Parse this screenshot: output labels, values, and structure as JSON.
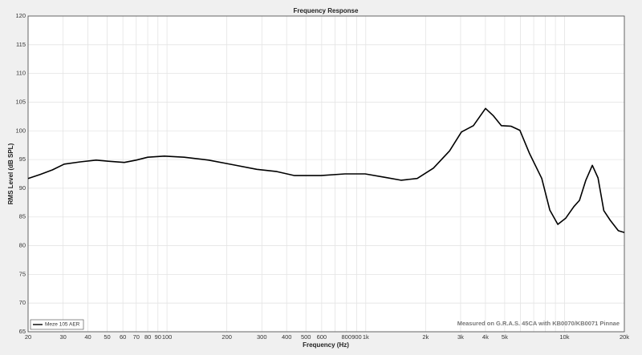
{
  "chart_data": {
    "type": "line",
    "title": "Frequency Response",
    "xlabel": "Frequency (Hz)",
    "ylabel": "RMS Level (dB SPL)",
    "annotation": "Measured on G.R.A.S. 45CA with KB0070/KB0071 Pinnae",
    "xscale": "log",
    "grid": true,
    "legend": "lower left",
    "xlim": [
      20,
      20000
    ],
    "ylim": [
      65,
      120
    ],
    "yticks": [
      65,
      70,
      75,
      80,
      85,
      90,
      95,
      100,
      105,
      110,
      115,
      120
    ],
    "xticks": [
      20,
      30,
      40,
      50,
      60,
      70,
      80,
      90,
      100,
      200,
      300,
      400,
      500,
      600,
      800,
      900,
      {
        "value": 1000,
        "label": "1k"
      },
      {
        "value": 2000,
        "label": "2k"
      },
      {
        "value": 3000,
        "label": "3k"
      },
      {
        "value": 4000,
        "label": "4k"
      },
      {
        "value": 5000,
        "label": "5k"
      },
      {
        "value": 10000,
        "label": "10k"
      },
      {
        "value": 20000,
        "label": "20k"
      }
    ],
    "xminorticks": [
      700,
      6000,
      7000,
      8000,
      9000
    ],
    "x": [
      20,
      23,
      26.5,
      30.4,
      36.6,
      44,
      50.6,
      61,
      70,
      80,
      97,
      122,
      162,
      214,
      283,
      357,
      438,
      594,
      786,
      993,
      1250,
      1505,
      1815,
      2190,
      2640,
      3030,
      3480,
      4005,
      4390,
      4810,
      5380,
      5960,
      6680,
      7680,
      8430,
      9250,
      10150,
      11140,
      11890,
      12800,
      13800,
      14750,
      15760,
      17000,
      18650,
      20000
    ],
    "series": [
      {
        "name": "Meze 105 AER",
        "color": "#000000",
        "values": [
          91.7,
          92.4,
          93.2,
          94.2,
          94.6,
          94.9,
          94.7,
          94.5,
          94.9,
          95.4,
          95.6,
          95.4,
          94.9,
          94.1,
          93.3,
          92.9,
          92.2,
          92.2,
          92.5,
          92.5,
          91.9,
          91.4,
          91.7,
          93.5,
          96.5,
          99.8,
          100.9,
          103.9,
          102.6,
          100.9,
          100.8,
          100.1,
          96.0,
          91.7,
          86.2,
          83.7,
          84.8,
          86.8,
          87.9,
          91.4,
          94.0,
          91.8,
          86.1,
          84.4,
          82.6,
          82.3
        ]
      }
    ]
  }
}
